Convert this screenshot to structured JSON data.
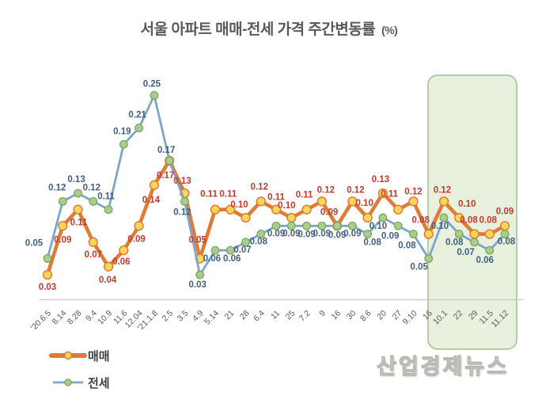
{
  "title": {
    "text": "서울 아파트 매매-전세 가격 주간변동률",
    "suffix": "(%)"
  },
  "legend": {
    "items": [
      {
        "label": "매매"
      },
      {
        "label": "전세"
      }
    ]
  },
  "watermark": "산업경제뉴스",
  "colors": {
    "title_text": "#595959",
    "axis_line": "#c9c9c9",
    "tick_text": "#595959",
    "sale_line": "#e07b35",
    "sale_marker_fill": "#f7d65c",
    "sale_label": "#c13b2f",
    "jeonse_line": "#7ca6cb",
    "jeonse_marker_fill": "#a8ce8d",
    "jeonse_marker_stroke": "#7fa65a",
    "jeonse_label": "#41607f",
    "highlight_fill": "#e7f1de",
    "highlight_stroke": "#a6be8c"
  },
  "chart_data": {
    "type": "line",
    "title": "서울 아파트 매매-전세 가격 주간변동률 (%)",
    "xlabel": "",
    "ylabel": "",
    "ylim": [
      0,
      0.27
    ],
    "grid": false,
    "legend_position": "bottom-left",
    "categories": [
      "'20.6.5",
      "8.14",
      "8.28",
      "9.4",
      "10.9",
      "11.6",
      "12.04",
      "'21.1.8",
      "2.5",
      "3.5",
      "4.9",
      "5.14",
      "21",
      "28",
      "6.4",
      "11",
      "25",
      "7.2",
      "9",
      "16",
      "30",
      "8.6",
      "20",
      "27",
      "9.10",
      "16",
      "10.1",
      "22",
      "29",
      "11.5",
      "11.12"
    ],
    "series": [
      {
        "name": "매매",
        "values": [
          0.03,
          0.09,
          0.11,
          0.07,
          0.04,
          0.06,
          0.09,
          0.14,
          0.17,
          0.13,
          0.05,
          0.11,
          0.11,
          0.1,
          0.12,
          0.11,
          0.1,
          0.11,
          0.12,
          0.09,
          0.12,
          0.1,
          0.13,
          0.11,
          0.12,
          0.08,
          0.12,
          0.1,
          0.08,
          0.08,
          0.09
        ]
      },
      {
        "name": "전세",
        "values": [
          0.05,
          0.12,
          0.13,
          0.12,
          0.11,
          0.19,
          0.21,
          0.25,
          0.17,
          0.12,
          0.03,
          0.06,
          0.06,
          0.07,
          0.08,
          0.09,
          0.09,
          0.09,
          0.09,
          0.09,
          0.09,
          0.08,
          0.1,
          0.09,
          0.08,
          0.05,
          0.1,
          0.08,
          0.07,
          0.06,
          0.08
        ]
      }
    ],
    "highlight_region": {
      "from": "10.1",
      "to": "11.12"
    }
  }
}
